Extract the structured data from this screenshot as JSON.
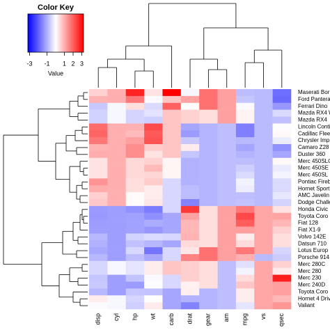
{
  "chart_data": {
    "type": "heatmap",
    "title": "Color Key",
    "xlabel": "Value",
    "columns": [
      "disp",
      "cyl",
      "hp",
      "wt",
      "carb",
      "drat",
      "gear",
      "am",
      "mpg",
      "vs",
      "qsec"
    ],
    "rows": [
      "Maserati Bor",
      "Ford Pantera",
      "Ferrari Dino",
      "Mazda RX4 W",
      "Mazda RX4",
      "Lincoln Conti",
      "Cadillac Flee",
      "Chrysler Imp",
      "Camaro Z28",
      "Duster 360",
      "Merc 450SLC",
      "Merc 450SE",
      "Merc 450SL",
      "Pontiac Fireb",
      "Hornet Sport",
      "AMC Javelin",
      "Dodge Challe",
      "Honda Civic",
      "Toyota Coro",
      "Fiat 128",
      "Fiat X1-9",
      "Volvo 142E",
      "Datsun 710",
      "Lotus Europ",
      "Porsche 914",
      "Merc 280C",
      "Merc 280",
      "Merc 230",
      "Merc 240D",
      "Toyota Coro",
      "Hornet 4 Driv",
      "Valiant"
    ],
    "values": [
      [
        0.57,
        1.01,
        2.75,
        0.36,
        3.21,
        -0.11,
        1.78,
        1.19,
        -0.84,
        -0.87,
        -1.82
      ],
      [
        0.97,
        1.01,
        1.71,
        -0.05,
        0.74,
        1.17,
        1.78,
        1.19,
        -0.71,
        -0.87,
        -1.87
      ],
      [
        -0.69,
        -0.1,
        0.41,
        -0.46,
        1.98,
        0.04,
        1.78,
        1.19,
        -0.06,
        -0.87,
        -1.31
      ],
      [
        -0.57,
        -0.1,
        -0.54,
        -0.35,
        0.74,
        0.57,
        0.42,
        1.19,
        0.15,
        -0.87,
        -0.46
      ],
      [
        -0.57,
        -0.1,
        -0.54,
        -0.61,
        0.74,
        0.57,
        0.42,
        1.19,
        0.15,
        -0.87,
        -0.79
      ],
      [
        1.85,
        1.01,
        0.99,
        2.26,
        0.74,
        -1.12,
        -0.93,
        -0.81,
        -1.61,
        -0.87,
        -0.02
      ],
      [
        1.95,
        1.01,
        0.85,
        2.08,
        0.74,
        -1.25,
        -0.93,
        -0.81,
        -1.61,
        -0.87,
        0.07
      ],
      [
        1.69,
        1.01,
        1.21,
        2.17,
        0.74,
        -0.69,
        -0.93,
        -0.81,
        -0.89,
        -0.87,
        -0.24
      ],
      [
        0.96,
        1.01,
        1.43,
        0.64,
        0.74,
        0.25,
        -0.93,
        -0.81,
        -1.13,
        -0.87,
        -1.37
      ],
      [
        1.04,
        1.01,
        1.43,
        0.36,
        0.74,
        -0.72,
        -0.93,
        -0.81,
        -0.96,
        -0.87,
        -1.12
      ],
      [
        0.36,
        1.01,
        0.49,
        0.58,
        0.12,
        -0.98,
        -0.93,
        -0.81,
        -0.81,
        -0.87,
        0.08
      ],
      [
        0.36,
        1.01,
        0.49,
        0.87,
        0.12,
        -0.98,
        -0.93,
        -0.81,
        -0.61,
        -0.87,
        -0.25
      ],
      [
        0.36,
        1.01,
        0.49,
        0.52,
        0.12,
        -0.98,
        -0.93,
        -0.81,
        -0.46,
        -0.87,
        -0.14
      ],
      [
        1.37,
        1.01,
        0.41,
        0.64,
        -0.5,
        -0.97,
        -0.93,
        -0.81,
        -0.15,
        -0.87,
        -0.45
      ],
      [
        1.04,
        1.01,
        0.41,
        0.23,
        -0.5,
        -0.84,
        -0.93,
        -0.81,
        -0.23,
        -0.87,
        -0.46
      ],
      [
        0.59,
        1.01,
        0.05,
        0.22,
        -0.5,
        -0.84,
        -0.93,
        -0.81,
        -0.81,
        -0.87,
        -0.31
      ],
      [
        0.7,
        1.01,
        0.05,
        0.31,
        -0.5,
        -1.56,
        -0.93,
        -0.81,
        -0.76,
        -0.87,
        -0.55
      ],
      [
        -1.25,
        -1.22,
        -1.38,
        -1.64,
        -0.5,
        2.49,
        0.42,
        1.19,
        1.71,
        1.12,
        0.37
      ],
      [
        -1.29,
        -1.22,
        -1.19,
        -1.41,
        -1.12,
        1.17,
        0.42,
        1.19,
        2.29,
        1.12,
        1.15
      ],
      [
        -1.23,
        -1.22,
        -1.18,
        -1.04,
        -1.12,
        0.9,
        0.42,
        1.19,
        2.04,
        1.12,
        0.91
      ],
      [
        -1.22,
        -1.22,
        -1.18,
        -1.31,
        -1.12,
        0.9,
        0.42,
        1.19,
        1.2,
        1.12,
        0.59
      ],
      [
        -0.89,
        -1.22,
        -0.55,
        -0.45,
        -0.5,
        0.96,
        0.42,
        1.19,
        0.22,
        1.12,
        0.42
      ],
      [
        -0.99,
        -1.22,
        -0.78,
        -0.92,
        -1.12,
        0.47,
        0.42,
        1.19,
        0.45,
        1.12,
        0.43
      ],
      [
        -1.09,
        -1.22,
        -0.49,
        -1.74,
        -0.5,
        0.32,
        1.78,
        1.19,
        1.71,
        1.12,
        -0.53
      ],
      [
        -0.89,
        -1.22,
        -0.81,
        -1.1,
        -0.5,
        1.56,
        1.78,
        1.19,
        0.98,
        -0.87,
        -0.64
      ],
      [
        -0.51,
        -0.1,
        -0.34,
        0.23,
        0.74,
        0.6,
        0.42,
        -0.81,
        -0.38,
        1.12,
        0.59
      ],
      [
        -0.51,
        -0.1,
        -0.34,
        0.23,
        0.74,
        0.6,
        0.42,
        -0.81,
        -0.15,
        1.12,
        0.25
      ],
      [
        -0.73,
        -1.22,
        -0.75,
        -0.07,
        -0.5,
        0.6,
        0.42,
        -0.81,
        0.45,
        1.12,
        2.83
      ],
      [
        -0.68,
        -1.22,
        -1.24,
        -0.03,
        -0.5,
        0.17,
        0.42,
        -0.81,
        0.72,
        1.12,
        1.2
      ],
      [
        -0.89,
        -1.22,
        -0.73,
        -0.77,
        -1.12,
        0.19,
        -0.93,
        -0.81,
        0.23,
        1.12,
        1.2
      ],
      [
        0.22,
        -0.1,
        -0.54,
        0.0,
        -1.12,
        -0.97,
        -0.93,
        -0.81,
        0.22,
        1.12,
        0.89
      ],
      [
        -0.05,
        -0.1,
        -0.61,
        0.25,
        -1.12,
        -1.56,
        -0.93,
        -0.81,
        -0.33,
        1.12,
        1.33
      ]
    ],
    "colorscale": [
      "#0000ff",
      "#ffffff",
      "#ff0000"
    ],
    "zlim": [
      -3.2,
      3.2
    ],
    "zticks": [
      -3,
      -1,
      1,
      2,
      3
    ]
  }
}
